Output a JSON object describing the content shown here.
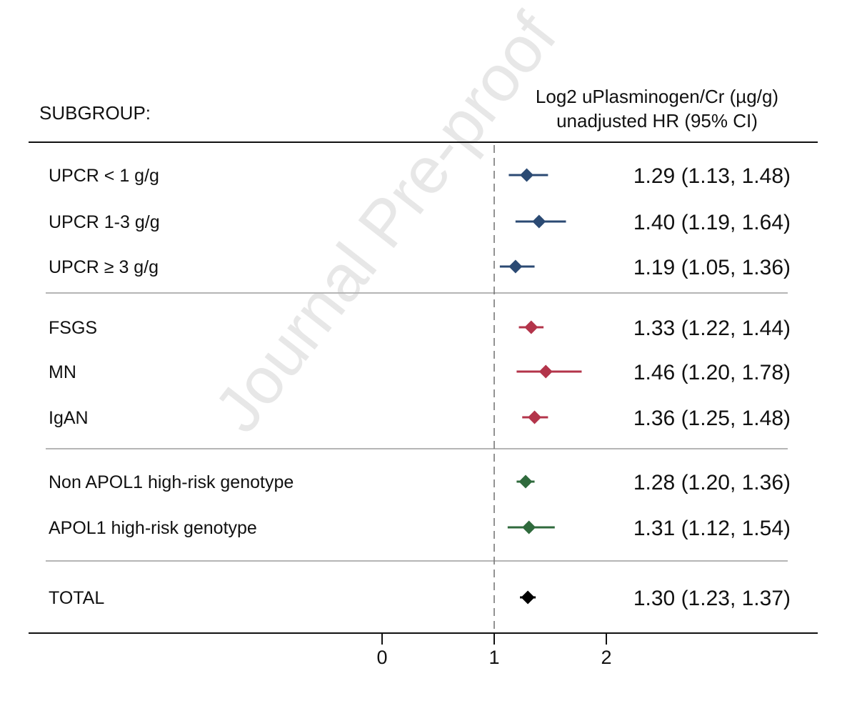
{
  "header": {
    "subgroup_label": "SUBGROUP:",
    "column_title_line1": "Log2 uPlasminogen/Cr (µg/g)",
    "column_title_line2": "unadjusted HR (95% CI)"
  },
  "watermark": "Journal Pre-proof",
  "chart_data": {
    "type": "forest",
    "xlim": [
      0,
      2
    ],
    "reference_line": 1,
    "x_ticks": [
      "0",
      "1",
      "2"
    ],
    "groups": [
      {
        "color": "#2b4a73",
        "rows": [
          {
            "label": "UPCR < 1 g/g",
            "hr": 1.29,
            "lo": 1.13,
            "hi": 1.48,
            "text": "1.29 (1.13, 1.48)"
          },
          {
            "label": "UPCR 1-3 g/g",
            "hr": 1.4,
            "lo": 1.19,
            "hi": 1.64,
            "text": "1.40 (1.19, 1.64)"
          },
          {
            "label": "UPCR ≥ 3 g/g",
            "hr": 1.19,
            "lo": 1.05,
            "hi": 1.36,
            "text": "1.19 (1.05, 1.36)"
          }
        ]
      },
      {
        "color": "#b3344a",
        "rows": [
          {
            "label": "FSGS",
            "hr": 1.33,
            "lo": 1.22,
            "hi": 1.44,
            "text": "1.33 (1.22, 1.44)"
          },
          {
            "label": "MN",
            "hr": 1.46,
            "lo": 1.2,
            "hi": 1.78,
            "text": "1.46 (1.20, 1.78)"
          },
          {
            "label": "IgAN",
            "hr": 1.36,
            "lo": 1.25,
            "hi": 1.48,
            "text": "1.36 (1.25, 1.48)"
          }
        ]
      },
      {
        "color": "#2f6a3c",
        "rows": [
          {
            "label": "Non APOL1 high-risk genotype",
            "hr": 1.28,
            "lo": 1.2,
            "hi": 1.36,
            "text": "1.28 (1.20, 1.36)"
          },
          {
            "label": "APOL1 high-risk genotype",
            "hr": 1.31,
            "lo": 1.12,
            "hi": 1.54,
            "text": "1.31 (1.12, 1.54)"
          }
        ]
      },
      {
        "color": "#000000",
        "rows": [
          {
            "label": "TOTAL",
            "hr": 1.3,
            "lo": 1.23,
            "hi": 1.37,
            "text": "1.30 (1.23, 1.37)"
          }
        ]
      }
    ]
  }
}
